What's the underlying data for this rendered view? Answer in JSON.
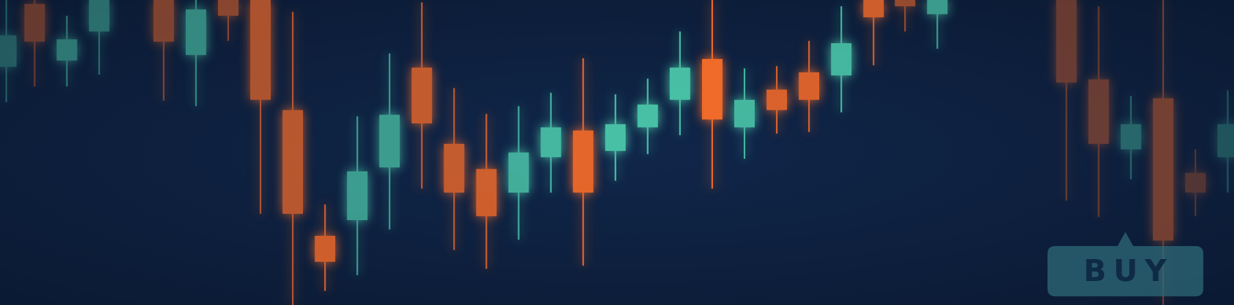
{
  "button": {
    "label": "BUY"
  }
}
